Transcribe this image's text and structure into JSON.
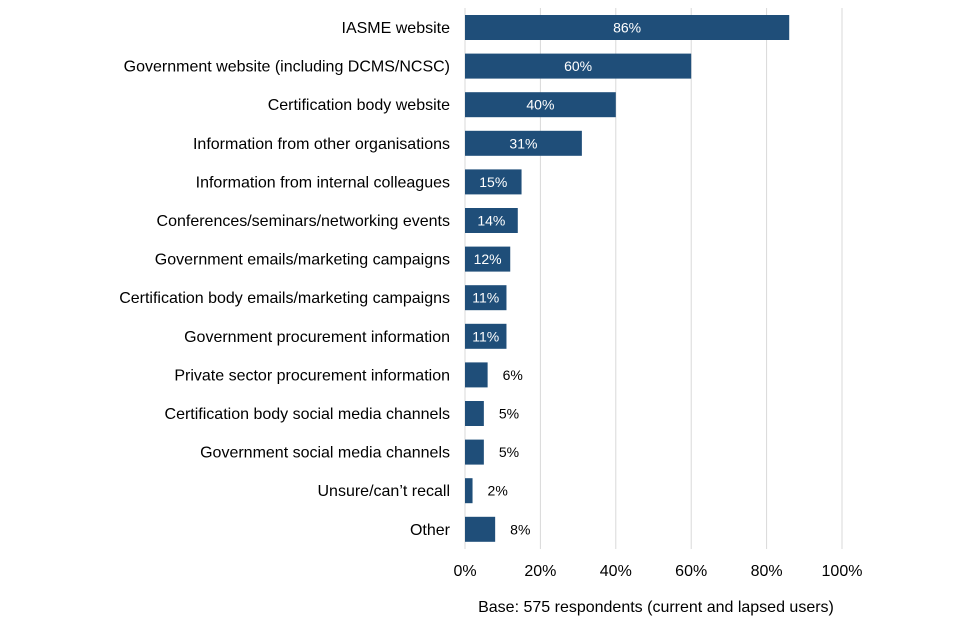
{
  "chart_data": {
    "type": "bar",
    "orientation": "horizontal",
    "title": "",
    "xlabel": "",
    "ylabel": "",
    "categories": [
      "IASME website",
      "Government website (including DCMS/NCSC)",
      "Certification body website",
      "Information from other organisations",
      "Information from internal colleagues",
      "Conferences/seminars/networking events",
      "Government emails/marketing campaigns",
      "Certification body emails/marketing campaigns",
      "Government procurement information",
      "Private sector procurement information",
      "Certification body social media channels",
      "Government social media channels",
      "Unsure/can’t recall",
      "Other"
    ],
    "values": [
      86,
      60,
      40,
      31,
      15,
      14,
      12,
      11,
      11,
      6,
      5,
      5,
      2,
      8
    ],
    "data_labels": [
      "86%",
      "60%",
      "40%",
      "31%",
      "15%",
      "14%",
      "12%",
      "11%",
      "11%",
      "6%",
      "5%",
      "5%",
      "2%",
      "8%"
    ],
    "xlim": [
      0,
      100
    ],
    "xticks": [
      0,
      20,
      40,
      60,
      80,
      100
    ],
    "xtick_labels": [
      "0%",
      "20%",
      "40%",
      "60%",
      "80%",
      "100%"
    ],
    "grid": "vertical",
    "bar_color": "#1f4e79",
    "label_inside_color": "#ffffff",
    "label_outside_color": "#000000",
    "note": "Base: 575 respondents (current and lapsed users)"
  }
}
